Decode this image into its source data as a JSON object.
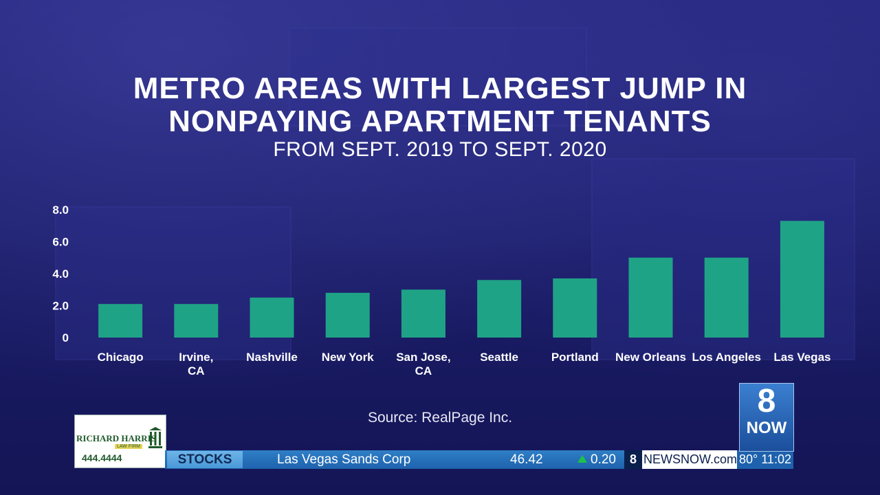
{
  "title_line1": "METRO AREAS WITH LARGEST JUMP IN",
  "title_line2": "NONPAYING APARTMENT TENANTS",
  "subtitle": "FROM SEPT. 2019 TO SEPT. 2020",
  "source": "Source: RealPage Inc.",
  "chart_data": {
    "type": "bar",
    "title": "METRO AREAS WITH LARGEST JUMP IN NONPAYING APARTMENT TENANTS",
    "subtitle": "FROM SEPT. 2019 TO SEPT. 2020",
    "categories": [
      [
        "Chicago"
      ],
      [
        "Irvine,",
        "CA"
      ],
      [
        "Nashville"
      ],
      [
        "New York"
      ],
      [
        "San Jose,",
        "CA"
      ],
      [
        "Seattle"
      ],
      [
        "Portland"
      ],
      [
        "New Orleans"
      ],
      [
        "Los Angeles"
      ],
      [
        "Las Vegas"
      ]
    ],
    "values": [
      2.1,
      2.1,
      2.5,
      2.8,
      3.0,
      3.6,
      3.7,
      5.0,
      5.0,
      7.3
    ],
    "yticks": [
      "0",
      "2.0",
      "4.0",
      "6.0",
      "8.0"
    ],
    "ylim": [
      0,
      8
    ],
    "bar_color": "#1fa386",
    "grid": false,
    "legend": "none"
  },
  "ticker": {
    "ad_name": "RICHARD HARRIS",
    "ad_sub": "LAW FIRM",
    "ad_phone": "444.4444",
    "section": "STOCKS",
    "company": "Las Vegas Sands Corp",
    "price": "46.42",
    "change": "0.20",
    "change_color": "#1ec24a",
    "site": "NEWSNOW.com",
    "weather_time": "80° 11:02"
  },
  "station_logo": {
    "number": "8",
    "label": "NOW"
  }
}
